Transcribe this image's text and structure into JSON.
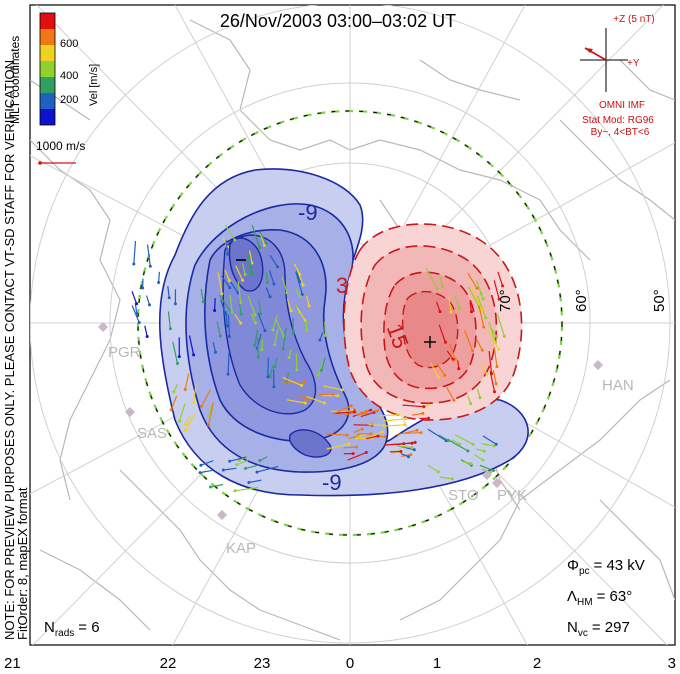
{
  "title": "26/Nov/2003 03:00–03:02 UT",
  "coord_system": "MLT coordinates",
  "colorbar": {
    "label": "Vel [m/s]",
    "ticks": [
      "600",
      "400",
      "200"
    ],
    "colors": [
      "#e01010",
      "#f07810",
      "#f0d020",
      "#90d030",
      "#30a060",
      "#2060c0",
      "#1010d0"
    ]
  },
  "scale_vector": "1000 m/s",
  "imf": {
    "plus_z": "+Z (5 nT)",
    "plus_y": "+Y",
    "source": "OMNI IMF",
    "model": "Stat Mod: RG96",
    "condition": "By−, 4<BT<6",
    "color": "#cc1010"
  },
  "potential_labels": [
    "-9",
    "3",
    "15",
    "-9"
  ],
  "latitude_labels": [
    "70°",
    "60°",
    "50°"
  ],
  "stations": [
    "PGR",
    "SAS",
    "KAP",
    "HAN",
    "STO",
    "PYK"
  ],
  "stats": {
    "phi_sym": "Φ",
    "phi_sub": "pc",
    "phi_val": "= 43 kV",
    "lam_sym": "Λ",
    "lam_sub": "HM",
    "lam_val": "= 63°",
    "n_sym": "N",
    "n_sub": "vc",
    "n_val": "= 297",
    "nrads_sym": "N",
    "nrads_sub": "rads",
    "nrads_val": "= 6"
  },
  "notes": {
    "line1": "NOTE: FOR PREVIEW PURPOSES ONLY. PLEASE CONTACT VT-SD STAFF FOR VERIFICATION.",
    "line2": "FitOrder: 8, mapEX format"
  },
  "mlt_ticks": [
    "21",
    "22",
    "23",
    "0",
    "1",
    "2",
    "3"
  ]
}
